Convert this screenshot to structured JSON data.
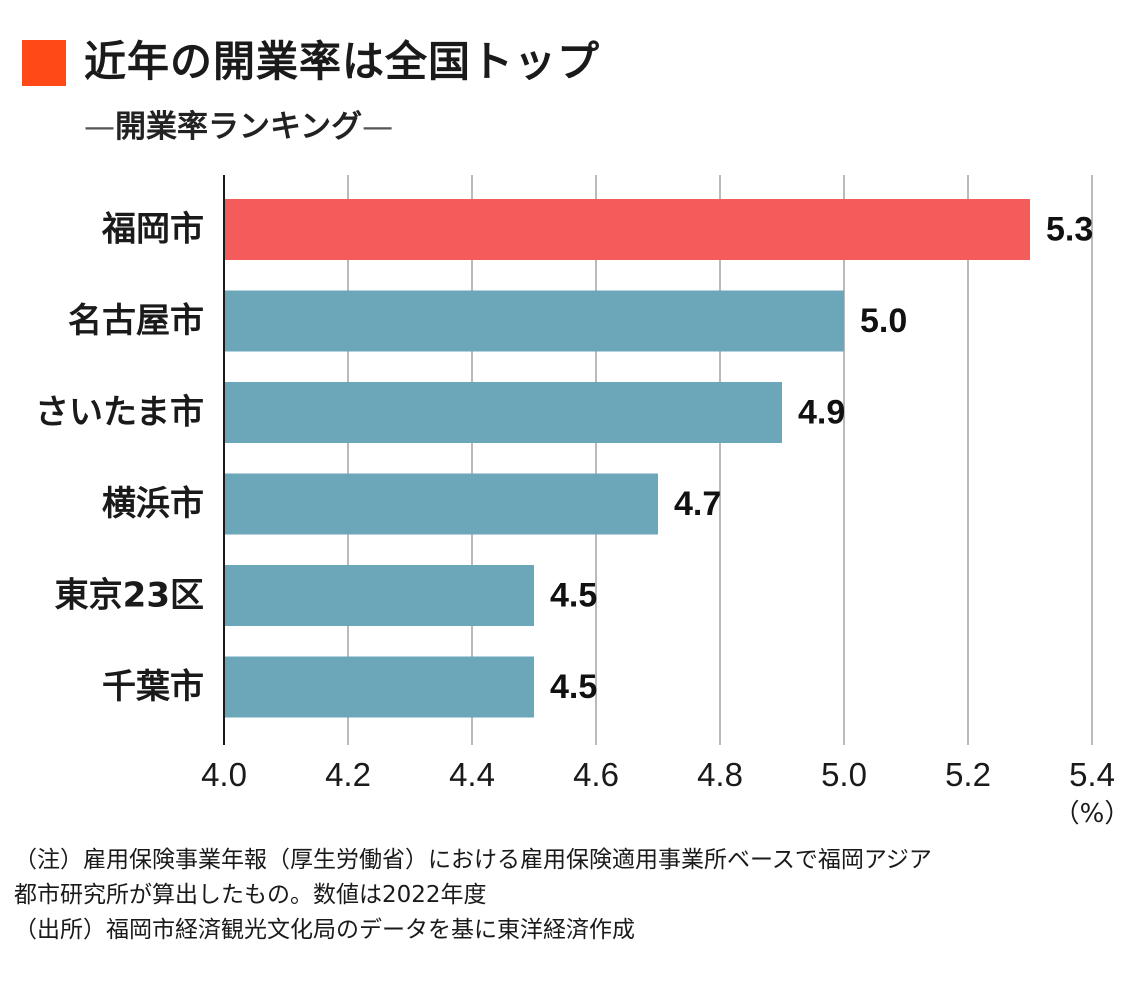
{
  "header": {
    "title": "近年の開業率は全国トップ",
    "subtitle_prefix": "—",
    "subtitle": "開業率ランキング",
    "subtitle_suffix": "—",
    "marker_color": "#ff4a17"
  },
  "chart_data": {
    "type": "bar",
    "orientation": "horizontal",
    "categories": [
      "福岡市",
      "名古屋市",
      "さいたま市",
      "横浜市",
      "東京23区",
      "千葉市"
    ],
    "values": [
      5.3,
      5.0,
      4.9,
      4.7,
      4.5,
      4.5
    ],
    "value_labels": [
      "5.3",
      "5.0",
      "4.9",
      "4.7",
      "4.5",
      "4.5"
    ],
    "xlim": [
      4.0,
      5.4
    ],
    "x_ticks": [
      4.0,
      4.2,
      4.4,
      4.6,
      4.8,
      5.0,
      5.2,
      5.4
    ],
    "x_tick_labels": [
      "4.0",
      "4.2",
      "4.4",
      "4.6",
      "4.8",
      "5.0",
      "5.2",
      "5.4"
    ],
    "unit_label": "（%）",
    "highlight_index": 0,
    "highlight_color": "#f45b5b",
    "bar_color": "#6ba7b8",
    "grid": true
  },
  "notes": {
    "line1": "（注）雇用保険事業年報（厚生労働省）における雇用保険適用事業所ベースで福岡アジア",
    "line2": "都市研究所が算出したもの。数値は2022年度",
    "line3": "（出所）福岡市経済観光文化局のデータを基に東洋経済作成"
  }
}
